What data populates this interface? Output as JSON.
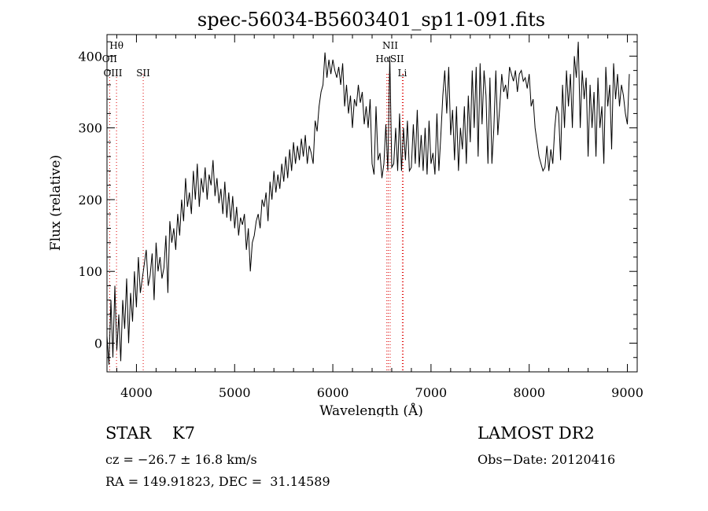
{
  "chart_data": {
    "type": "line",
    "title": "spec-56034-B5603401_sp11-091.fits",
    "xlabel": "Wavelength (Å)",
    "ylabel": "Flux (relative)",
    "xlim": [
      3700,
      9100
    ],
    "ylim": [
      -40,
      430
    ],
    "xticks": [
      4000,
      5000,
      6000,
      7000,
      8000,
      9000
    ],
    "yticks": [
      0,
      100,
      200,
      300,
      400
    ],
    "grid": false,
    "series": [
      {
        "x": [
          3700,
          3720,
          3740,
          3760,
          3780,
          3800,
          3820,
          3840,
          3860,
          3880,
          3900,
          3920,
          3940,
          3960,
          3980,
          4000,
          4020,
          4040,
          4060,
          4080,
          4100,
          4120,
          4140,
          4160,
          4180,
          4200,
          4220,
          4240,
          4260,
          4280,
          4300,
          4320,
          4340,
          4360,
          4380,
          4400,
          4420,
          4440,
          4460,
          4480,
          4500,
          4520,
          4540,
          4560,
          4580,
          4600,
          4620,
          4640,
          4660,
          4680,
          4700,
          4720,
          4740,
          4760,
          4780,
          4800,
          4820,
          4840,
          4860,
          4880,
          4900,
          4920,
          4940,
          4960,
          4980,
          5000,
          5020,
          5040,
          5060,
          5080,
          5100,
          5120,
          5140,
          5160,
          5180,
          5200,
          5220,
          5240,
          5260,
          5280,
          5300,
          5320,
          5340,
          5360,
          5380,
          5400,
          5420,
          5440,
          5460,
          5480,
          5500,
          5520,
          5540,
          5560,
          5580,
          5600,
          5620,
          5640,
          5660,
          5680,
          5700,
          5720,
          5740,
          5760,
          5780,
          5800,
          5820,
          5840,
          5860,
          5880,
          5900,
          5920,
          5940,
          5960,
          5980,
          6000,
          6020,
          6040,
          6060,
          6080,
          6100,
          6120,
          6140,
          6160,
          6180,
          6200,
          6220,
          6240,
          6260,
          6280,
          6300,
          6320,
          6340,
          6360,
          6380,
          6400,
          6420,
          6440,
          6460,
          6480,
          6500,
          6520,
          6540,
          6560,
          6580,
          6600,
          6620,
          6640,
          6660,
          6680,
          6700,
          6720,
          6740,
          6760,
          6780,
          6800,
          6820,
          6840,
          6860,
          6880,
          6900,
          6920,
          6940,
          6960,
          6980,
          7000,
          7020,
          7040,
          7060,
          7080,
          7100,
          7120,
          7140,
          7160,
          7180,
          7200,
          7220,
          7240,
          7260,
          7280,
          7300,
          7320,
          7340,
          7360,
          7380,
          7400,
          7420,
          7440,
          7460,
          7480,
          7500,
          7520,
          7540,
          7560,
          7580,
          7600,
          7620,
          7640,
          7660,
          7680,
          7700,
          7720,
          7740,
          7760,
          7780,
          7800,
          7820,
          7840,
          7860,
          7880,
          7900,
          7920,
          7940,
          7960,
          7980,
          8000,
          8020,
          8040,
          8060,
          8080,
          8100,
          8120,
          8140,
          8160,
          8180,
          8200,
          8220,
          8240,
          8260,
          8280,
          8300,
          8320,
          8340,
          8360,
          8380,
          8400,
          8420,
          8440,
          8460,
          8480,
          8500,
          8520,
          8540,
          8560,
          8580,
          8600,
          8620,
          8640,
          8660,
          8680,
          8700,
          8720,
          8740,
          8760,
          8780,
          8800,
          8820,
          8840,
          8860,
          8880,
          8900,
          8920,
          8940,
          8960,
          8980,
          9000,
          9020
        ],
        "y": [
          10,
          -30,
          60,
          -20,
          80,
          -10,
          40,
          -25,
          60,
          20,
          90,
          0,
          70,
          30,
          100,
          50,
          120,
          70,
          90,
          110,
          130,
          80,
          95,
          125,
          60,
          140,
          100,
          120,
          90,
          105,
          150,
          70,
          170,
          140,
          160,
          130,
          180,
          150,
          200,
          170,
          230,
          190,
          210,
          180,
          240,
          200,
          250,
          190,
          230,
          210,
          245,
          200,
          235,
          220,
          255,
          205,
          230,
          195,
          215,
          180,
          225,
          175,
          210,
          170,
          205,
          160,
          190,
          150,
          175,
          165,
          180,
          130,
          160,
          100,
          140,
          150,
          170,
          180,
          160,
          200,
          190,
          210,
          170,
          225,
          200,
          240,
          210,
          235,
          215,
          250,
          225,
          260,
          230,
          270,
          240,
          280,
          250,
          275,
          255,
          285,
          260,
          290,
          250,
          275,
          265,
          250,
          310,
          295,
          330,
          350,
          360,
          405,
          370,
          395,
          375,
          395,
          380,
          370,
          385,
          360,
          390,
          330,
          360,
          320,
          345,
          300,
          340,
          330,
          360,
          335,
          350,
          305,
          330,
          300,
          340,
          250,
          235,
          330,
          255,
          265,
          230,
          250,
          305,
          240,
          400,
          245,
          250,
          300,
          240,
          320,
          240,
          300,
          255,
          310,
          240,
          245,
          305,
          250,
          325,
          245,
          290,
          240,
          300,
          235,
          310,
          250,
          265,
          235,
          320,
          240,
          290,
          345,
          380,
          320,
          385,
          290,
          325,
          255,
          330,
          240,
          300,
          270,
          330,
          250,
          345,
          280,
          380,
          300,
          385,
          260,
          390,
          305,
          380,
          345,
          250,
          370,
          250,
          300,
          380,
          290,
          330,
          375,
          350,
          360,
          340,
          385,
          375,
          365,
          380,
          350,
          375,
          380,
          365,
          370,
          355,
          375,
          330,
          340,
          300,
          280,
          260,
          250,
          240,
          245,
          275,
          240,
          270,
          250,
          300,
          330,
          320,
          255,
          360,
          300,
          380,
          330,
          375,
          300,
          400,
          370,
          420,
          300,
          380,
          340,
          370,
          260,
          360,
          300,
          350,
          260,
          370,
          300,
          330,
          250,
          385,
          330,
          360,
          270,
          390,
          340,
          375,
          330,
          360,
          345,
          320,
          305,
          375
        ]
      }
    ],
    "line_labels": [
      {
        "label": "Hθ",
        "x": 3797,
        "row": 0
      },
      {
        "label": "OII",
        "x": 3727,
        "row": 1
      },
      {
        "label": "OIII",
        "x": 3760,
        "row": 2
      },
      {
        "label": "SII",
        "x": 4069,
        "row": 2
      },
      {
        "label": "NII",
        "x": 6584,
        "row": 0
      },
      {
        "label": "HαSII",
        "x": 6580,
        "row": 1
      },
      {
        "label": "Li",
        "x": 6708,
        "row": 2
      }
    ],
    "line_markers": [
      {
        "x": 3727,
        "color": "#dd0000"
      },
      {
        "x": 3797,
        "color": "#dd0000"
      },
      {
        "x": 4069,
        "color": "#dd0000"
      },
      {
        "x": 6550,
        "color": "#dd0000"
      },
      {
        "x": 6565,
        "color": "#dd0000"
      },
      {
        "x": 6584,
        "color": "#dd0000"
      },
      {
        "x": 6708,
        "color": "#dd0000"
      },
      {
        "x": 6717,
        "color": "#dd0000"
      }
    ]
  },
  "info": {
    "class_line": "STAR    K7",
    "survey": "LAMOST DR2",
    "cz": "cz = −26.7 ± 16.8 km/s",
    "obs_date": "Obs−Date: 20120416",
    "coords": "RA = 149.91823, DEC =  31.14589"
  }
}
